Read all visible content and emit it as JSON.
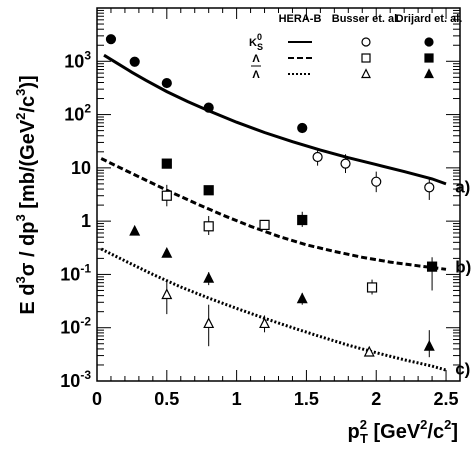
{
  "chart_data": {
    "type": "scatter",
    "title": "",
    "xlabel": "p_T^2 [GeV^2/c^2]",
    "ylabel": "E d^3σ/dp^3 [mb/(GeV^2/c^3)]",
    "xlim": [
      0,
      2.6
    ],
    "ylim": [
      0.001,
      10000
    ],
    "yscale": "log",
    "x_ticks": [
      "0",
      "0.5",
      "1",
      "1.5",
      "2",
      "2.5"
    ],
    "y_ticks": [
      {
        "base": "10",
        "exp": "-3",
        "value": 0.001
      },
      {
        "base": "10",
        "exp": "-2",
        "value": 0.01
      },
      {
        "base": "10",
        "exp": "-1",
        "value": 0.1
      },
      {
        "base": "1",
        "exp": "",
        "value": 1
      },
      {
        "base": "10",
        "exp": "",
        "value": 10
      },
      {
        "base": "10",
        "exp": "2",
        "value": 100
      },
      {
        "base": "10",
        "exp": "3",
        "value": 1000
      }
    ],
    "legend": {
      "position": "top-right",
      "columns": [
        "HERA-B",
        "Busser et. al.",
        "Drijard et. al."
      ],
      "rows": [
        {
          "particle": "K",
          "sup": "0",
          "sub": "S",
          "line": "solid",
          "busser_marker": "open-circle",
          "drijard_marker": "filled-circle"
        },
        {
          "particle": "Λ",
          "sup": "",
          "sub": "",
          "line": "dashed",
          "busser_marker": "open-square",
          "drijard_marker": "filled-square"
        },
        {
          "particle": "Λ",
          "sup": "",
          "sub": "",
          "overline": true,
          "line": "dotted",
          "busser_marker": "open-triangle",
          "drijard_marker": "filled-triangle"
        }
      ]
    },
    "curve_labels": [
      {
        "text": "a)",
        "x": 2.58,
        "y": 4.5
      },
      {
        "text": "b)",
        "x": 2.58,
        "y": 0.14
      },
      {
        "text": "c)",
        "x": 2.58,
        "y": 0.0017
      }
    ],
    "series": [
      {
        "particle": "K0S",
        "source": "HERA-B",
        "kind": "line",
        "line": "solid",
        "x": [
          0.05,
          0.15,
          0.25,
          0.35,
          0.5,
          0.65,
          0.8,
          1.0,
          1.2,
          1.4,
          1.6,
          1.8,
          2.0,
          2.2,
          2.4,
          2.5
        ],
        "y": [
          1300,
          900,
          620,
          440,
          270,
          175,
          118,
          72,
          46,
          31,
          21.5,
          15.5,
          11.5,
          8.5,
          6.2,
          5.0
        ]
      },
      {
        "particle": "Lambda",
        "source": "HERA-B",
        "kind": "line",
        "line": "dashed",
        "x": [
          0.03,
          0.15,
          0.3,
          0.5,
          0.7,
          0.9,
          1.1,
          1.3,
          1.5,
          1.7,
          1.9,
          2.1,
          2.3,
          2.45,
          2.5
        ],
        "y": [
          15,
          10.5,
          6.8,
          3.8,
          2.2,
          1.3,
          0.8,
          0.52,
          0.36,
          0.27,
          0.21,
          0.17,
          0.145,
          0.13,
          0.125
        ]
      },
      {
        "particle": "AntiLambda",
        "source": "HERA-B",
        "kind": "line",
        "line": "dotted",
        "x": [
          0.03,
          0.2,
          0.4,
          0.6,
          0.8,
          1.0,
          1.2,
          1.4,
          1.6,
          1.8,
          2.0,
          2.2,
          2.4,
          2.5
        ],
        "y": [
          0.3,
          0.18,
          0.1,
          0.058,
          0.036,
          0.023,
          0.015,
          0.01,
          0.0068,
          0.0047,
          0.0034,
          0.0025,
          0.0019,
          0.0016
        ]
      },
      {
        "particle": "K0S",
        "source": "Busser et. al.",
        "kind": "marker",
        "marker": "open-circle",
        "x": [
          1.58,
          1.78,
          2.0,
          2.38
        ],
        "y": [
          16,
          12,
          5.5,
          4.3
        ],
        "err_low": [
          11,
          8,
          3.5,
          2.5
        ],
        "err_high": [
          23,
          18,
          8.5,
          6.5
        ]
      },
      {
        "particle": "Lambda",
        "source": "Busser et. al.",
        "kind": "marker",
        "marker": "open-square",
        "x": [
          0.5,
          0.8,
          1.2,
          1.97
        ],
        "y": [
          3.0,
          0.8,
          0.85,
          0.057
        ],
        "err_low": [
          1.9,
          0.55,
          0.85,
          0.042
        ],
        "err_high": [
          4.8,
          1.25,
          0.85,
          0.08
        ]
      },
      {
        "particle": "AntiLambda",
        "source": "Busser et. al.",
        "kind": "marker",
        "marker": "open-triangle",
        "x": [
          0.5,
          0.8,
          1.2,
          1.95
        ],
        "y": [
          0.042,
          0.012,
          0.012,
          0.0035
        ],
        "err_low": [
          0.018,
          0.0045,
          0.0082,
          0.0029
        ],
        "err_high": [
          0.075,
          0.027,
          0.017,
          0.0042
        ]
      },
      {
        "particle": "K0S",
        "source": "Drijard et. al.",
        "kind": "marker",
        "marker": "filled-circle",
        "x": [
          0.1,
          0.27,
          0.5,
          0.8,
          1.47
        ],
        "y": [
          2600,
          980,
          390,
          135,
          56
        ]
      },
      {
        "particle": "Lambda",
        "source": "Drijard et. al.",
        "kind": "marker",
        "marker": "filled-square",
        "x": [
          0.5,
          0.8,
          1.47,
          2.4
        ],
        "y": [
          12,
          3.8,
          1.05,
          0.14
        ],
        "err_low": [
          12,
          3.8,
          0.78,
          0.05
        ],
        "err_high": [
          12,
          3.8,
          1.5,
          0.21
        ]
      },
      {
        "particle": "AntiLambda",
        "source": "Drijard et. al.",
        "kind": "marker",
        "marker": "filled-triangle",
        "x": [
          0.27,
          0.5,
          0.8,
          1.47,
          2.38
        ],
        "y": [
          0.65,
          0.25,
          0.085,
          0.035,
          0.0045
        ],
        "err_low": [
          0.65,
          0.25,
          0.063,
          0.027,
          0.0028
        ],
        "err_high": [
          0.65,
          0.25,
          0.11,
          0.045,
          0.009
        ]
      }
    ]
  }
}
